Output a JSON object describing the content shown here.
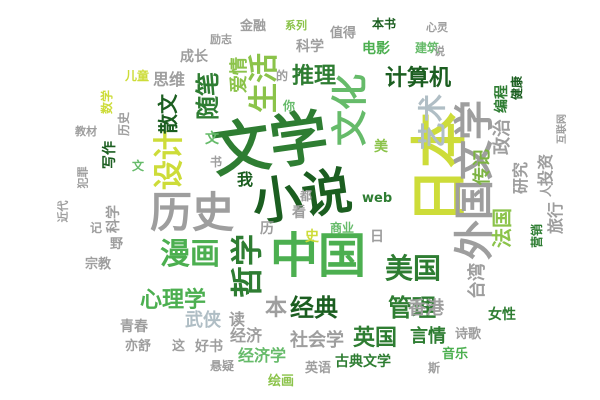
{
  "words": {
    "w01": "文学",
    "w02": "小说",
    "w03": "日本",
    "w04": "中国",
    "w05": "外国文学",
    "w06": "历史",
    "w07": "文化",
    "w08": "美国",
    "w09": "漫画",
    "w10": "哲学",
    "w11": "设计",
    "w12": "生活",
    "w13": "艺术",
    "w14": "推理",
    "w15": "计算机",
    "w16": "经典",
    "w17": "管理",
    "w18": "心理学",
    "w19": "散文",
    "w20": "随笔",
    "w21": "爱情",
    "w22": "传记",
    "w23": "政治",
    "w24": "法国",
    "w25": "英国",
    "w26": "经济学",
    "w27": "社会学",
    "w28": "台湾",
    "w29": "武侠",
    "w30": "香港",
    "w31": "言情",
    "w32": "科学",
    "w33": "电影",
    "w34": "思维",
    "w35": "成长",
    "w36": "青春",
    "w37": "经济",
    "w38": "读",
    "w39": "投资",
    "w40": "研究",
    "w41": "旅行",
    "w42": "编程",
    "w43": "健康",
    "w44": "女性",
    "w45": "诗歌",
    "w46": "音乐",
    "w47": "古典文学",
    "w48": "英语",
    "w49": "绘画",
    "w50": "好书",
    "w51": "这",
    "w52": "悬疑",
    "w53": "亦舒",
    "w54": "宗教",
    "w55": "本",
    "w56": "我",
    "w57": "web",
    "w58": "金融",
    "w59": "励志",
    "w60": "值得",
    "w61": "本书",
    "w62": "心灵",
    "w63": "建筑",
    "w64": "系列",
    "w65": "互联网",
    "w66": "教材",
    "w67": "营销",
    "w68": "数学",
    "w69": "儿童",
    "w70": "历史",
    "w71": "写作",
    "w72": "书",
    "w73": "犯罪",
    "w74": "近代",
    "w75": "科学",
    "w76": "日",
    "w77": "的",
    "w78": "斯",
    "w79": "你",
    "w80": "文",
    "w81": "都",
    "w82": "看",
    "w83": "美",
    "w84": "商业",
    "w85": "历",
    "w86": "野",
    "w87": "说",
    "w88": "记",
    "w89": "文",
    "w90": "史",
    "w91": "人"
  }
}
